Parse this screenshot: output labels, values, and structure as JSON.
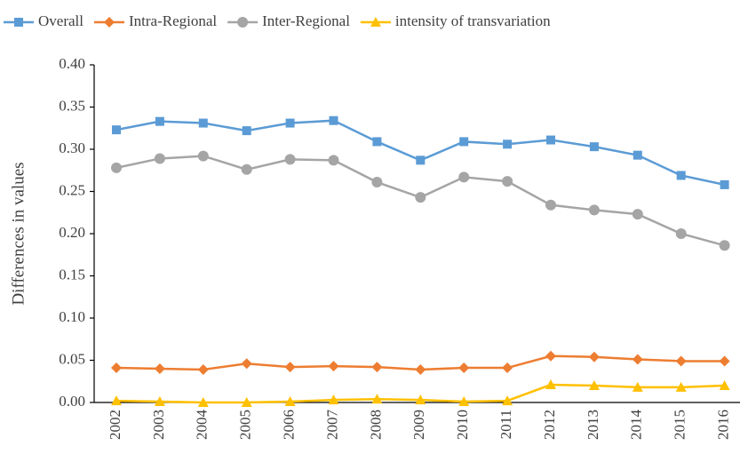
{
  "chart_data": {
    "type": "line",
    "y_label": "Differences in values",
    "categories": [
      "2002",
      "2003",
      "2004",
      "2005",
      "2006",
      "2007",
      "2008",
      "2009",
      "2010",
      "2011",
      "2012",
      "2013",
      "2014",
      "2015",
      "2016"
    ],
    "series": [
      {
        "name": "Overall",
        "color": "#5b9bd5",
        "marker": "square",
        "values": [
          0.323,
          0.333,
          0.331,
          0.322,
          0.331,
          0.334,
          0.309,
          0.287,
          0.309,
          0.306,
          0.311,
          0.303,
          0.293,
          0.269,
          0.258
        ]
      },
      {
        "name": "Intra-Regional",
        "color": "#ed7d31",
        "marker": "diamond",
        "values": [
          0.041,
          0.04,
          0.039,
          0.046,
          0.042,
          0.043,
          0.042,
          0.039,
          0.041,
          0.041,
          0.055,
          0.054,
          0.051,
          0.049,
          0.049
        ]
      },
      {
        "name": "Inter-Regional",
        "color": "#a5a5a5",
        "marker": "circle",
        "values": [
          0.278,
          0.289,
          0.292,
          0.276,
          0.288,
          0.287,
          0.261,
          0.243,
          0.267,
          0.262,
          0.234,
          0.228,
          0.223,
          0.2,
          0.186
        ]
      },
      {
        "name": "intensity of transvariation",
        "color": "#ffc000",
        "marker": "triangle",
        "values": [
          0.002,
          0.001,
          0.0,
          0.0,
          0.001,
          0.003,
          0.004,
          0.003,
          0.001,
          0.002,
          0.021,
          0.02,
          0.018,
          0.018,
          0.02
        ]
      }
    ],
    "ylim": [
      0,
      0.4
    ],
    "yticks": [
      {
        "value": 0,
        "label": "0.00"
      },
      {
        "value": 0.05,
        "label": "0.05"
      },
      {
        "value": 0.1,
        "label": "0.10"
      },
      {
        "value": 0.15,
        "label": "0.15"
      },
      {
        "value": 0.2,
        "label": "0.20"
      },
      {
        "value": 0.25,
        "label": "0.25"
      },
      {
        "value": 0.3,
        "label": "0.30"
      },
      {
        "value": 0.35,
        "label": "0.35"
      },
      {
        "value": 0.4,
        "label": "0.40"
      }
    ],
    "legend": "top",
    "grid": false
  }
}
